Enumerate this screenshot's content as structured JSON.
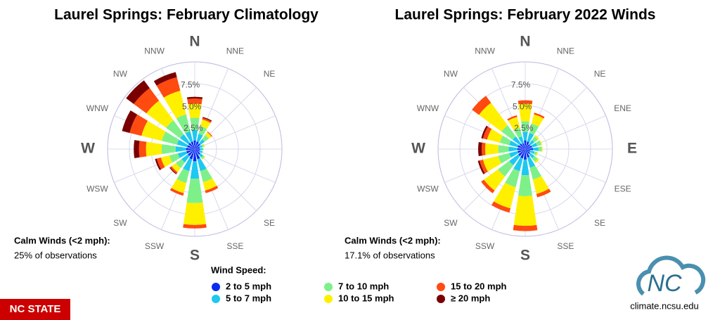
{
  "chart_data": [
    {
      "type": "wind_rose",
      "title": "Laurel Springs: February Climatology",
      "categories": [
        "N",
        "NNE",
        "NE",
        null,
        null,
        null,
        "SE",
        "SSE",
        "S",
        "SSW",
        "SW",
        "WSW",
        "W",
        "WNW",
        "NW",
        "NNW"
      ],
      "rlim": [
        0,
        10
      ],
      "rticks": [
        {
          "value": 2.5,
          "label": "2.5%"
        },
        {
          "value": 5.0,
          "label": "5.0%"
        },
        {
          "value": 7.5,
          "label": "7.5%"
        }
      ],
      "calm_label": "Calm Winds (<2 mph):",
      "calm_value": "25% of observations",
      "series": [
        {
          "values": [
            1.0,
            0.9,
            0.8,
            0.6,
            0.6,
            0.6,
            0.8,
            1.2,
            1.4,
            1.2,
            1.0,
            1.0,
            1.0,
            0.9,
            0.9,
            0.9
          ]
        },
        {
          "values": [
            1.2,
            0.9,
            0.6,
            0.3,
            0.3,
            0.3,
            0.4,
            1.4,
            2.0,
            1.4,
            0.9,
            1.0,
            1.2,
            1.2,
            1.2,
            1.2
          ]
        },
        {
          "values": [
            1.4,
            0.9,
            0.6,
            0.2,
            0.1,
            0.1,
            0.2,
            1.3,
            2.8,
            1.4,
            0.8,
            1.0,
            1.6,
            1.8,
            2.0,
            2.0
          ]
        },
        {
          "values": [
            1.6,
            0.8,
            0.4,
            0.1,
            0,
            0,
            0.1,
            1.0,
            2.5,
            1.2,
            0.6,
            1.0,
            1.8,
            2.4,
            2.8,
            2.8
          ]
        },
        {
          "values": [
            0.6,
            0.2,
            0.1,
            0,
            0,
            0,
            0,
            0.3,
            0.4,
            0.3,
            0.2,
            0.5,
            0.8,
            1.4,
            1.8,
            1.6
          ]
        },
        {
          "values": [
            0.2,
            0.1,
            0,
            0,
            0,
            0,
            0,
            0,
            0,
            0,
            0.1,
            0.2,
            0.6,
            0.9,
            1.1,
            0.6
          ]
        }
      ]
    },
    {
      "type": "wind_rose",
      "title": "Laurel Springs: February 2022 Winds",
      "categories": [
        "N",
        "NNE",
        "NE",
        "ENE",
        "E",
        "ESE",
        "SE",
        "SSE",
        "S",
        "SSW",
        "SW",
        "WSW",
        "W",
        "WNW",
        "NW",
        "NNW"
      ],
      "rlim": [
        0,
        10
      ],
      "rticks": [
        {
          "value": 2.5,
          "label": "2.5%"
        },
        {
          "value": 5.0,
          "label": "5.0%"
        },
        {
          "value": 7.5,
          "label": "7.5%"
        }
      ],
      "calm_label": "Calm Winds (<2 mph):",
      "calm_value": "17.1% of observations",
      "series": [
        {
          "values": [
            1.0,
            0.9,
            0.7,
            0.8,
            0.9,
            0.6,
            0.7,
            1.0,
            1.2,
            1.1,
            1.0,
            0.9,
            0.9,
            0.9,
            0.8,
            0.7
          ]
        },
        {
          "values": [
            1.0,
            1.0,
            0.6,
            0.6,
            0.6,
            0.5,
            0.6,
            1.2,
            1.8,
            1.5,
            1.3,
            1.0,
            1.0,
            1.0,
            1.0,
            0.8
          ]
        },
        {
          "values": [
            1.2,
            1.1,
            0.5,
            0.5,
            0.4,
            0.3,
            0.5,
            1.4,
            2.4,
            1.9,
            1.6,
            1.3,
            1.2,
            1.1,
            1.6,
            1.0
          ]
        },
        {
          "values": [
            2.0,
            1.1,
            0.2,
            0.1,
            0.1,
            0.1,
            0.2,
            1.7,
            3.4,
            2.5,
            2.0,
            1.8,
            1.5,
            1.5,
            3.2,
            1.3
          ]
        },
        {
          "values": [
            0.4,
            0.2,
            0,
            0,
            0,
            0,
            0,
            0.4,
            0.6,
            0.5,
            0.4,
            0.4,
            0.4,
            0.5,
            1.0,
            0.2
          ]
        },
        {
          "values": [
            0,
            0,
            0,
            0,
            0,
            0,
            0,
            0,
            0,
            0,
            0,
            0.2,
            0.4,
            0.2,
            0,
            0
          ]
        }
      ]
    }
  ],
  "legend": {
    "title": "Wind Speed:",
    "items": [
      {
        "name": "2 to 5 mph",
        "color": "#0a2cf0"
      },
      {
        "name": "5 to 7 mph",
        "color": "#1ec8f0"
      },
      {
        "name": "7 to 10 mph",
        "color": "#7ef08a"
      },
      {
        "name": "10 to 15 mph",
        "color": "#fff000"
      },
      {
        "name": "15 to 20 mph",
        "color": "#ff4a10"
      },
      {
        "name": "≥ 20 mph",
        "color": "#7a0000"
      }
    ]
  },
  "branding": {
    "logo": "NC STATE",
    "url": "climate.ncsu.edu"
  }
}
